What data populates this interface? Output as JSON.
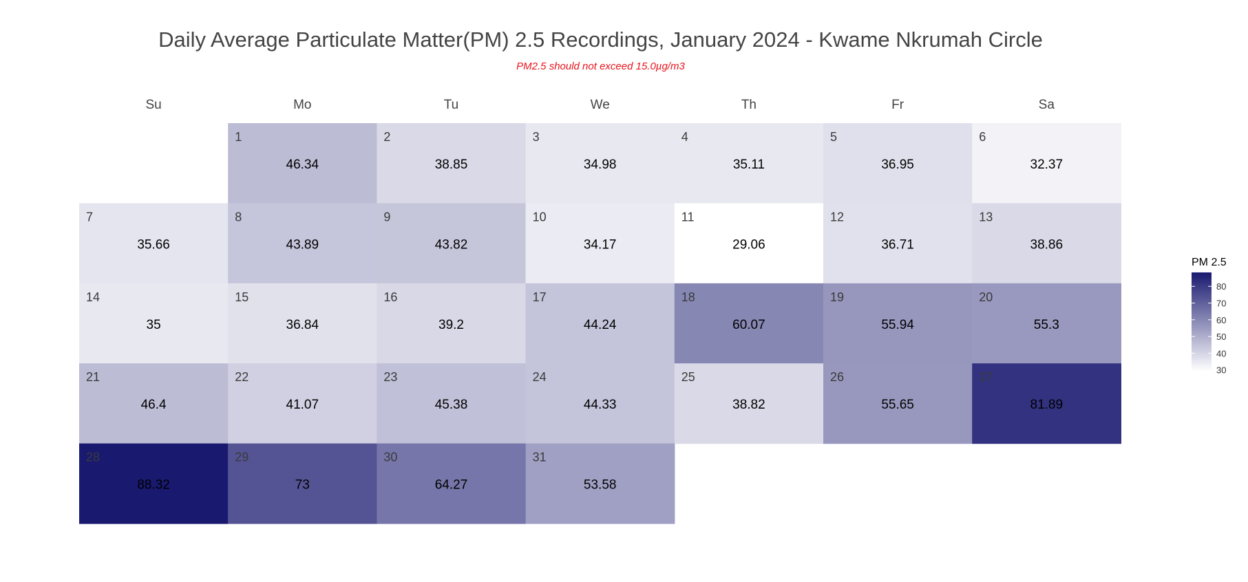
{
  "chart_data": {
    "type": "heatmap",
    "title": "Daily Average Particulate Matter(PM) 2.5 Recordings, January 2024 - Kwame Nkrumah Circle",
    "subtitle": "PM2.5 should not exceed 15.0µg/m3",
    "weekdays": [
      "Su",
      "Mo",
      "Tu",
      "We",
      "Th",
      "Fr",
      "Sa"
    ],
    "first_weekday_index": 1,
    "days": [
      {
        "day": 1,
        "value": 46.34
      },
      {
        "day": 2,
        "value": 38.85
      },
      {
        "day": 3,
        "value": 34.98
      },
      {
        "day": 4,
        "value": 35.11
      },
      {
        "day": 5,
        "value": 36.95
      },
      {
        "day": 6,
        "value": 32.37
      },
      {
        "day": 7,
        "value": 35.66
      },
      {
        "day": 8,
        "value": 43.89
      },
      {
        "day": 9,
        "value": 43.82
      },
      {
        "day": 10,
        "value": 34.17
      },
      {
        "day": 11,
        "value": 29.06
      },
      {
        "day": 12,
        "value": 36.71
      },
      {
        "day": 13,
        "value": 38.86
      },
      {
        "day": 14,
        "value": 35
      },
      {
        "day": 15,
        "value": 36.84
      },
      {
        "day": 16,
        "value": 39.2
      },
      {
        "day": 17,
        "value": 44.24
      },
      {
        "day": 18,
        "value": 60.07
      },
      {
        "day": 19,
        "value": 55.94
      },
      {
        "day": 20,
        "value": 55.3
      },
      {
        "day": 21,
        "value": 46.4
      },
      {
        "day": 22,
        "value": 41.07
      },
      {
        "day": 23,
        "value": 45.38
      },
      {
        "day": 24,
        "value": 44.33
      },
      {
        "day": 25,
        "value": 38.82
      },
      {
        "day": 26,
        "value": 55.65
      },
      {
        "day": 27,
        "value": 81.89
      },
      {
        "day": 28,
        "value": 88.32
      },
      {
        "day": 29,
        "value": 73
      },
      {
        "day": 30,
        "value": 64.27
      },
      {
        "day": 31,
        "value": 53.58
      }
    ],
    "legend": {
      "title": "PM 2.5",
      "ticks": [
        30,
        40,
        50,
        60,
        70,
        80
      ],
      "min": 29.06,
      "max": 88.32,
      "low_color": "#ffffff",
      "high_color": "#191970",
      "placement": "right"
    }
  }
}
